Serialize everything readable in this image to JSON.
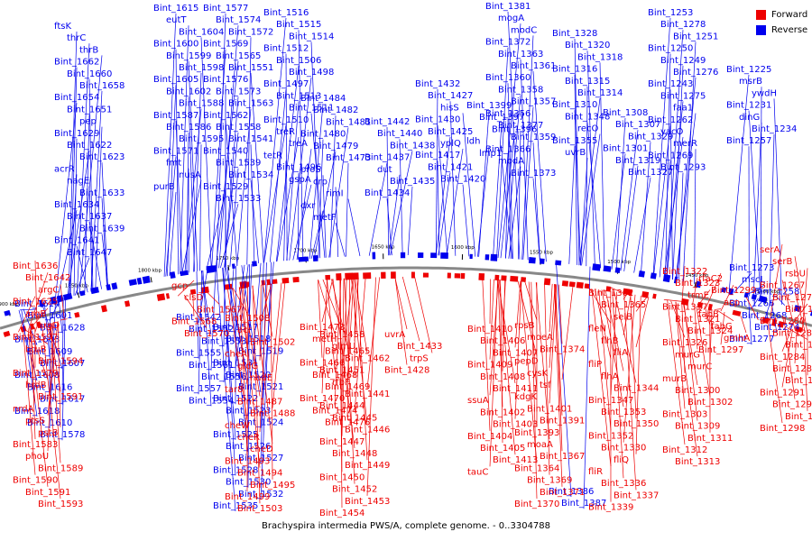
{
  "legend": {
    "forward": {
      "label": "Forward",
      "color": "#ee0000"
    },
    "reverse": {
      "label": "Reverse",
      "color": "#0000ee"
    }
  },
  "caption": "Brachyspira intermedia PWS/A, complete genome. - 0..3304788",
  "scale_labels": [
    "1900 kbp",
    "1850 kbp",
    "1800 kbp",
    "1750 kbp",
    "1700 kbp",
    "1650 kbp",
    "1600 kbp",
    "1550 kbp",
    "1500 kbp",
    "1450 kbp",
    "1400 kbp"
  ],
  "reverse_labels": [
    "ftsK",
    "thrC",
    "thrB",
    "Bint_1662",
    "Bint_1660",
    "Bint_1658",
    "Bint_1654",
    "Bint_1651",
    "pep",
    "Bint_1629",
    "Bint_1622",
    "Bint_1623",
    "acrR",
    "nagE",
    "Bint_1633",
    "Bint_1634",
    "Bint_1637",
    "Bint_1639",
    "Bint_1641",
    "Bint_1647",
    "Bint_1615",
    "eutT",
    "Bint_1604",
    "Bint_1600",
    "Bint_1599",
    "Bint_1598",
    "Bint_1605",
    "Bint_1602",
    "Bint_1588",
    "Bint_1587",
    "Bint_1586",
    "Bint_1595",
    "Bint_1571",
    "fmt",
    "nusA",
    "purB",
    "Bint_1577",
    "Bint_1574",
    "Bint_1572",
    "Bint_1569",
    "Bint_1565",
    "Bint_1551",
    "Bint_1576",
    "Bint_1573",
    "Bint_1563",
    "Bint_1562",
    "Bint_1558",
    "Bint_1541",
    "Bint_1540",
    "Bint_1539",
    "Bint_1534",
    "Bint_1529",
    "Bint_1533",
    "Bint_1516",
    "Bint_1515",
    "Bint_1514",
    "Bint_1512",
    "Bint_1506",
    "Bint_1498",
    "Bint_1497",
    "Bint_1513",
    "Bint_1511",
    "Bint_1510",
    "treR",
    "treA",
    "tetR",
    "Bint_1496",
    "gspA",
    "Bint_1484",
    "Bint_1482",
    "Bint_1481",
    "Bint_1480",
    "Bint_1479",
    "Bint_1473",
    "proS",
    "crp",
    "rimI",
    "dxr",
    "metF",
    "Bint_1442",
    "Bint_1440",
    "Bint_1438",
    "Bint_1437",
    "dut",
    "Bint_1435",
    "Bint_1434",
    "Bint_1432",
    "Bint_1427",
    "hisS",
    "Bint_1430",
    "Bint_1425",
    "yplQ",
    "Bint_1417",
    "Bint_1421",
    "Bint_1420",
    "Bint_1399",
    "Bint_1397",
    "Bint_1396",
    "ldh",
    "lmp1",
    "Bint_1381",
    "mogA",
    "modC",
    "Bint_1372",
    "Bint_1363",
    "Bint_1361",
    "Bint_1360",
    "Bint_1358",
    "Bint_1357",
    "Bint_1356",
    "Bint_1377",
    "Bint_1359",
    "Bint_1366",
    "modA",
    "Bint_1373",
    "Bint_1328",
    "Bint_1320",
    "Bint_1318",
    "Bint_1316",
    "Bint_1315",
    "Bint_1314",
    "Bint_1310",
    "Bint_1348",
    "recO",
    "Bint_1355",
    "uvrB",
    "Bint_1308",
    "Bint_1307",
    "Bint_1329",
    "Bint_1301",
    "Bint_1319",
    "Bint_1327",
    "Bint_1253",
    "Bint_1278",
    "Bint_1251",
    "Bint_1250",
    "Bint_1249",
    "Bint_1276",
    "Bint_1243",
    "Bint_1275",
    "faa1",
    "Bint_1262",
    "yacO",
    "merR",
    "Bint_1269",
    "Bint_1293",
    "Bint_1225",
    "msrB",
    "ywdH",
    "Bint_1231",
    "dinG",
    "Bint_1234",
    "Bint_1257",
    "Bint_1614",
    "Bint_1601",
    "Bint_1628",
    "Bint_1603",
    "Bint_1609",
    "Bint_1607",
    "Bint_1608",
    "Bint_1616",
    "Bint_1617",
    "Bint_1618",
    "Bint_1610",
    "Bint_1578",
    "Bint_1542",
    "Bint_1552",
    "Bint_1553",
    "Bint_1555",
    "Bint_1561",
    "Bint_1556",
    "Bint_1557",
    "Bint_1554",
    "Bint_1517",
    "Bint_1518",
    "Bint_1519",
    "Bint_1531",
    "Bint_1520",
    "Bint_1521",
    "Bint_1522",
    "Bint_1523",
    "Bint_1524",
    "Bint_1525",
    "Bint_1526",
    "Bint_1527",
    "Bint_1528",
    "Bint_1530",
    "Bint_1532",
    "Bint_1535",
    "Bint_1386",
    "Bint_1387",
    "Bint_1273",
    "mscL",
    "Bint_1258",
    "Bint_1266",
    "Bint_1268",
    "Bint_1274",
    "Bint_1277"
  ],
  "forward_labels": [
    "Bint_1636",
    "Bint_1642",
    "argC",
    "Bint_1625",
    "argB",
    "argD",
    "Bint_1597",
    "btuB",
    "Bint_1594",
    "Bint_1579",
    "hrdB",
    "Bint_1591",
    "nrdA",
    "ptsS",
    "pstB",
    "Bint_1583",
    "phoU",
    "Bint_1589",
    "Bint_1590",
    "Bint_1591",
    "Bint_1593",
    "Bint_1596",
    "gcp",
    "clsD",
    "Bint_1567",
    "Bint_1568",
    "Bint_1570",
    "Bint_1508",
    "acr",
    "Bint_1502",
    "cheA",
    "gldG",
    "nadE",
    "tar8",
    "Bint_1487",
    "Bint_1488",
    "cheW",
    "cheR",
    "cheD",
    "Bint_1493",
    "Bint_1494",
    "Bint_1495",
    "Bint_1499",
    "Bint_1503",
    "Bint_1504",
    "Bint_1478",
    "metH",
    "Bint_1465",
    "Bint_1466",
    "Bint_1468",
    "Bint_1469",
    "Bint_1470",
    "Bint_1474",
    "Bint_1476",
    "Bint_1458",
    "glmU",
    "Bint_1462",
    "Bint_1451",
    "rfbF",
    "Bint_1441",
    "Bint_1444",
    "Bint_1445",
    "Bint_1446",
    "Bint_1447",
    "Bint_1448",
    "Bint_1449",
    "Bint_1450",
    "Bint_1452",
    "Bint_1453",
    "Bint_1454",
    "Bint_1455",
    "uvrA",
    "Bint_1433",
    "trpS",
    "Bint_1428",
    "Bint_1410",
    "Bint_1406",
    "Bint_1407",
    "Bint_1409",
    "Bint_1408",
    "Bint_1411",
    "ssuA",
    "Bint_1402",
    "Bint_1403",
    "Bint_1404",
    "Bint_1405",
    "Bint_1413",
    "tauC",
    "rpsB",
    "moeA",
    "Bint_1374",
    "pepD",
    "cysK",
    "tsf",
    "kdgK",
    "Bint_1401",
    "Bint_1391",
    "Bint_1393",
    "moaA",
    "Bint_1367",
    "Bint_1364",
    "Bint_1369",
    "Bint_1371",
    "Bint_1370",
    "Bint_1368",
    "Bint_1376",
    "rluC",
    "Bint_1382",
    "moaC",
    "Bint_1388",
    "Bint_1362",
    "Bint_1365",
    "selB",
    "fleN",
    "flhB",
    "fliA",
    "fliP",
    "flhA",
    "Bint_1344",
    "Bint_1347",
    "Bint_1353",
    "Bint_1350",
    "Bint_1352",
    "Bint_1330",
    "fliQ",
    "fliR",
    "Bint_1336",
    "Bint_1337",
    "Bint_1339",
    "Bint_1340",
    "Bint_1341",
    "Bint_1343",
    "Bint_1345",
    "Bint_1349",
    "Bint_1322",
    "Bint_1323",
    "trmE",
    "Bint_1317",
    "Bint_1321",
    "Bint_1324",
    "Bint_1326",
    "murG",
    "murC",
    "murB",
    "Bint_1300",
    "Bint_1302",
    "Bint_1303",
    "Bint_1309",
    "Bint_1311",
    "Bint_1312",
    "Bint_1313",
    "rfaC2",
    "Bint_1299",
    "acp",
    "fabB",
    "fabG",
    "gmhA",
    "Bint_1297",
    "serA",
    "serB",
    "rsbU",
    "Bint_1267",
    "Bint_1271",
    "Bint_1272",
    "Bint_1280",
    "Bint_1282",
    "Bint_1283",
    "Bint_1284",
    "Bint_1286",
    "Bint_1289",
    "Bint_1291",
    "Bint_1295",
    "Bint_1296",
    "Bint_1298"
  ]
}
